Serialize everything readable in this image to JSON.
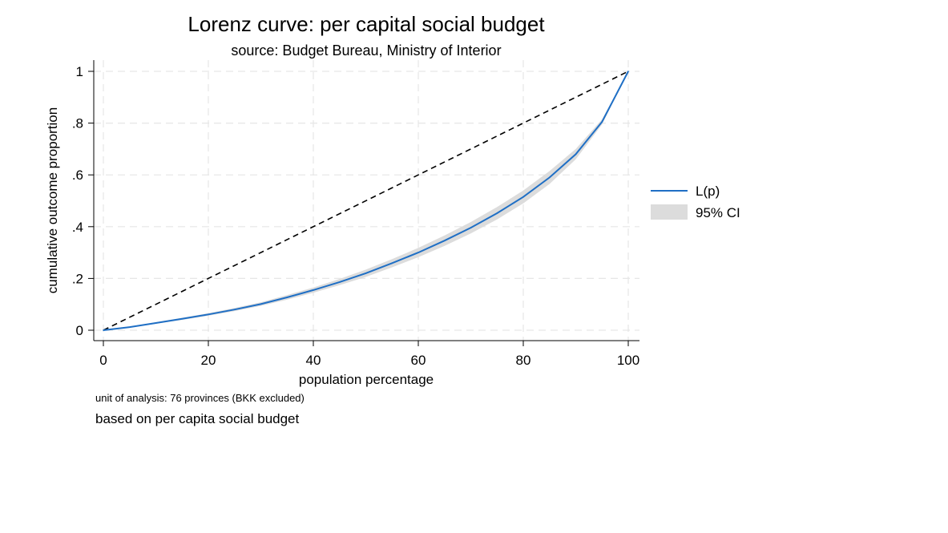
{
  "chart_data": {
    "type": "line",
    "title": "Lorenz curve: per capital social budget",
    "subtitle": "source: Budget Bureau, Ministry of Interior",
    "xlabel": "population percentage",
    "ylabel": "cumulative outcome proportion",
    "xlim": [
      0,
      100
    ],
    "ylim": [
      0,
      1
    ],
    "x_ticks": [
      0,
      20,
      40,
      60,
      80,
      100
    ],
    "x_tick_labels": [
      "0",
      "20",
      "40",
      "60",
      "80",
      "100"
    ],
    "y_ticks": [
      0,
      0.2,
      0.4,
      0.6,
      0.8,
      1
    ],
    "y_tick_labels": [
      "0",
      ".2",
      ".4",
      ".6",
      ".8",
      "1"
    ],
    "grid": true,
    "legend_position": "right",
    "series": [
      {
        "name": "L(p)",
        "style": "line",
        "color": "#1f6fc5",
        "x": [
          0,
          5,
          10,
          15,
          20,
          25,
          30,
          35,
          40,
          45,
          50,
          55,
          60,
          65,
          70,
          75,
          80,
          85,
          90,
          95,
          100
        ],
        "y": [
          0,
          0.012,
          0.028,
          0.044,
          0.061,
          0.08,
          0.101,
          0.127,
          0.155,
          0.186,
          0.22,
          0.259,
          0.3,
          0.346,
          0.396,
          0.452,
          0.515,
          0.59,
          0.68,
          0.805,
          1.0
        ]
      },
      {
        "name": "95% CI",
        "style": "band",
        "color": "#dcdcdc",
        "x": [
          0,
          5,
          10,
          15,
          20,
          25,
          30,
          35,
          40,
          45,
          50,
          55,
          60,
          65,
          70,
          75,
          80,
          85,
          90,
          95,
          100
        ],
        "lower": [
          0,
          0.01,
          0.025,
          0.04,
          0.056,
          0.074,
          0.094,
          0.118,
          0.145,
          0.174,
          0.206,
          0.243,
          0.282,
          0.326,
          0.374,
          0.428,
          0.49,
          0.565,
          0.66,
          0.795,
          1.0
        ],
        "upper": [
          0,
          0.014,
          0.031,
          0.048,
          0.066,
          0.086,
          0.108,
          0.136,
          0.165,
          0.198,
          0.234,
          0.275,
          0.318,
          0.366,
          0.418,
          0.476,
          0.54,
          0.615,
          0.7,
          0.815,
          1.0
        ]
      },
      {
        "style": "dashed-line",
        "color": "#000000",
        "x": [
          0,
          100
        ],
        "y": [
          0,
          1
        ]
      }
    ]
  },
  "notes": {
    "unit": "unit of analysis: 76 provinces (BKK excluded)",
    "basis": "based on per capita social budget"
  }
}
